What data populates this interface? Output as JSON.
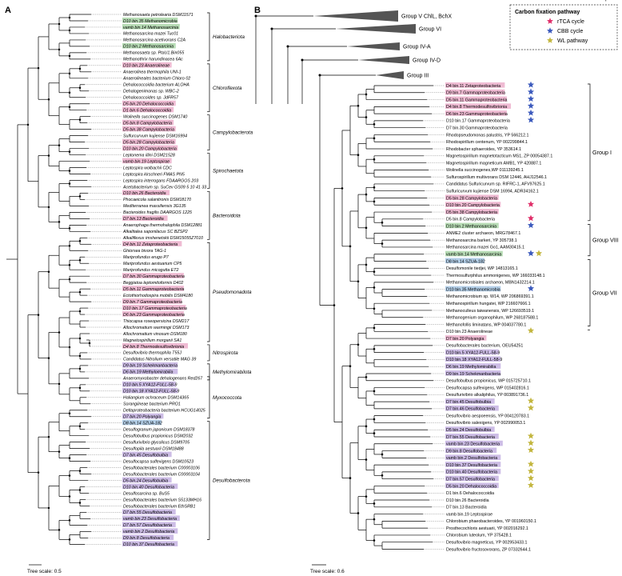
{
  "panels": {
    "a_label": "A",
    "b_label": "B"
  },
  "colors": {
    "green": "#b7dcb5",
    "pink": "#efbbd3",
    "blue": "#b4cfe8",
    "purple": "#cdbde6",
    "star_rtca": "#e0306a",
    "star_cbb": "#3d5bbd",
    "star_wl": "#c3b63f",
    "collapsed": "#555555"
  },
  "legend": {
    "title": "Carbon fixation pathway",
    "items": [
      {
        "label": "rTCA cycle",
        "key": "R"
      },
      {
        "label": "CBB cycle",
        "key": "C"
      },
      {
        "label": "WL pathway",
        "key": "W"
      }
    ]
  },
  "tree_a": {
    "leaves": [
      {
        "label": "Methanosaeta petrolearia DSM11571",
        "hl": ""
      },
      {
        "label": "D10 bin.35 Methanomicrobia",
        "hl": "green"
      },
      {
        "label": "vamb bin.14 Methanosarcinia",
        "hl": "green"
      },
      {
        "label": "Methanosarcina mazei Tuc01",
        "hl": ""
      },
      {
        "label": "Methanosarcina acetivorans C2A",
        "hl": ""
      },
      {
        "label": "D10 bin.2 Methanosarcinia",
        "hl": "green"
      },
      {
        "label": "Methanosaeta sp. PtaU1.Bin055",
        "hl": ""
      },
      {
        "label": "Methanothrix harundinacea 6Ac",
        "hl": ""
      },
      {
        "label": "D10 bin.23 Anaerolineae",
        "hl": "pink"
      },
      {
        "label": "Anaerolinea thermophila UNI-1",
        "hl": ""
      },
      {
        "label": "Anaerolineales bacterium Chloro 02",
        "hl": ""
      },
      {
        "label": "Dehalococcoidia bacterium ALOHA",
        "hl": ""
      },
      {
        "label": "Dehalogenimonas sp. WBC-2",
        "hl": ""
      },
      {
        "label": "Dehalococcoides sp. JdFR57",
        "hl": ""
      },
      {
        "label": "D5 bin.20 Dehalococcoidia",
        "hl": "pink"
      },
      {
        "label": "D1 bin.6 Dehalococcoidia",
        "hl": "pink"
      },
      {
        "label": "Wolinella succinogenes DSM1740",
        "hl": ""
      },
      {
        "label": "D5 bin.8 Campylobacteria",
        "hl": "pink"
      },
      {
        "label": "D5 bin.38 Campylobacteria",
        "hl": "pink"
      },
      {
        "label": "Sulfurcurvum kujiense DSM16994",
        "hl": ""
      },
      {
        "label": "D5 bin.28 Campylobacteria",
        "hl": "pink"
      },
      {
        "label": "D10 bin.20 Campylobacteria",
        "hl": "pink"
      },
      {
        "label": "Leptonema illini DSM21528",
        "hl": ""
      },
      {
        "label": "vamb bin.19 Leptospirae",
        "hl": "pink"
      },
      {
        "label": "Leptospira wolbachii CDC",
        "hl": ""
      },
      {
        "label": "Leptospira kirschneri FMAS PN5",
        "hl": ""
      },
      {
        "label": "Leptospira interrogans FDAARGOS 203",
        "hl": ""
      },
      {
        "label": "Acetobacterium sp. SuCev GS09 5 10 41 33",
        "hl": ""
      },
      {
        "label": "D10 bin.26 Bacteroidia",
        "hl": "pink"
      },
      {
        "label": "Phocaeicola salanitronis DSM18170",
        "hl": ""
      },
      {
        "label": "Mediterranea massiliensis 3G135",
        "hl": ""
      },
      {
        "label": "Bacteroides fragilis DAARGOS 1225",
        "hl": ""
      },
      {
        "label": "D7 bin.13 Bacteroidia",
        "hl": "pink"
      },
      {
        "label": "Anaerophaga thermohalophila DSM12881",
        "hl": ""
      },
      {
        "label": "Alkalitalea saponilacus SC BZSP2",
        "hl": ""
      },
      {
        "label": "Alkaliflexus imshenetskii DSM15055Z7010",
        "hl": ""
      },
      {
        "label": "D4 bin.11 Zetaproteobacteria",
        "hl": "pink"
      },
      {
        "label": "Ghiorsea bivora TAG-1",
        "hl": ""
      },
      {
        "label": "Mariprofundus erugo P7",
        "hl": ""
      },
      {
        "label": "Mariprofundus aestuarium CP5",
        "hl": ""
      },
      {
        "label": "Mariprofundus micogutta ET2",
        "hl": ""
      },
      {
        "label": "D7 bin.30 Gammaproteobacteria",
        "hl": "pink"
      },
      {
        "label": "Beggiatoa leptomitoformis D402",
        "hl": ""
      },
      {
        "label": "D5 bin.11 Gammaproteobacteria",
        "hl": "pink"
      },
      {
        "label": "Ectothiorhodospira mobilis DSM4180",
        "hl": ""
      },
      {
        "label": "D9 bin.7 Gammaproteobacteria",
        "hl": "pink"
      },
      {
        "label": "D10 bin.17 Gammaproteobacteria",
        "hl": "pink"
      },
      {
        "label": "D6 bin.23 Gammaproteobacteria",
        "hl": "pink"
      },
      {
        "label": "Thiocapsa roseopersicina DSM217",
        "hl": ""
      },
      {
        "label": "Allochromatium warmingii DSM173",
        "hl": ""
      },
      {
        "label": "Allochromatium vinosum DSM180",
        "hl": ""
      },
      {
        "label": "Magnetospirillum morganii SA1",
        "hl": ""
      },
      {
        "label": "D4 bin.8 Thermodesulfovibrionia",
        "hl": "pink"
      },
      {
        "label": "Desulfovibrio thermophila T55J",
        "hl": ""
      },
      {
        "label": "Candidatus Nitrolium versatile MAG 39",
        "hl": ""
      },
      {
        "label": "D9 bin.19 Schekmanbacteria",
        "hl": "purple"
      },
      {
        "label": "D6 bin.19 Methylomirabilia",
        "hl": "purple"
      },
      {
        "label": "Anaeromyxobacter dehalogenans Red267",
        "hl": ""
      },
      {
        "label": "D10 bin.5 XYA12-FULL-58-9",
        "hl": "purple"
      },
      {
        "label": "D10 bin.18 XYA12-FULL-58-9",
        "hl": "purple"
      },
      {
        "label": "Haliangium ochraceum DSM14365",
        "hl": ""
      },
      {
        "label": "Sorangiineae bacterium PRO1",
        "hl": ""
      },
      {
        "label": "Deltaproteobacteria bacterium HCUG14025",
        "hl": ""
      },
      {
        "label": "D7 bin.20 Polyangia",
        "hl": "purple"
      },
      {
        "label": "D8 bin.14 SZUA-182",
        "hl": "blue"
      },
      {
        "label": "Desulfogranum japonicum DSM18378",
        "hl": ""
      },
      {
        "label": "Desulfobulbus propionicus DSM2032",
        "hl": ""
      },
      {
        "label": "Desulfurivibrio glycolicus DSM9705",
        "hl": ""
      },
      {
        "label": "Desulfopila aestuarii DSM18488",
        "hl": ""
      },
      {
        "label": "D7 bin.45 Desulfobulbia",
        "hl": "purple"
      },
      {
        "label": "Desulfocapsa sulfexigens DSM10523",
        "hl": ""
      },
      {
        "label": "Desulfobacterales bacterium C00003106",
        "hl": ""
      },
      {
        "label": "Desulfobacterales bacterium C00003104",
        "hl": ""
      },
      {
        "label": "D5 bin.24 Desulfobulbia",
        "hl": "purple"
      },
      {
        "label": "D10 bin.40 Desulfobacteria",
        "hl": "purple"
      },
      {
        "label": "Desulfosarcina sp. BuS5",
        "hl": ""
      },
      {
        "label": "Desulfobacterales bacterium S5133MH16",
        "hl": ""
      },
      {
        "label": "Desulfobacterales bacterium EthSRB1",
        "hl": ""
      },
      {
        "label": "D7 bin.55 Desulfobacteria",
        "hl": "purple"
      },
      {
        "label": "vamb bin.23 Desulfobacteria",
        "hl": "purple"
      },
      {
        "label": "D7 bin.57 Desulfobacteria",
        "hl": "purple"
      },
      {
        "label": "vamb bin.2 Desulfobacteria",
        "hl": "purple"
      },
      {
        "label": "D9 bin.8 Desulfobacteria",
        "hl": "purple"
      },
      {
        "label": "D10 bin.37 Desulfobacteria",
        "hl": "purple"
      }
    ],
    "clades": [
      {
        "label": "Halobacteriota"
      },
      {
        "label": "Chloroflexota"
      },
      {
        "label": "Campylobacterota"
      },
      {
        "label": "Spirochaetota"
      },
      {
        "label": "Bacteroidota"
      },
      {
        "label": "Pseudomonadota"
      },
      {
        "label": "Nitrospirota"
      },
      {
        "label": "Methylomirabilota"
      },
      {
        "label": "Myxococcota"
      },
      {
        "label": "Desulfobacterota"
      }
    ],
    "scale_label": "Tree scale: 0.5"
  },
  "tree_b": {
    "collapsed": [
      {
        "label": "Group V ChlL, BchX"
      },
      {
        "label": "Group VI"
      },
      {
        "label": "Group IV-A"
      },
      {
        "label": "Group IV-D"
      },
      {
        "label": "Group III"
      }
    ],
    "leaves": [
      {
        "label": "D4 bin.11 Zetaproteobacteria",
        "hl": "pink",
        "stars": "C"
      },
      {
        "label": "D9 bin.7 Gammaproteobacteria",
        "hl": "pink",
        "stars": "C"
      },
      {
        "label": "D5 bin.11 Gammaproteobacteria",
        "hl": "pink",
        "stars": "C"
      },
      {
        "label": "D4 bin.8 Thermodesulfovibrionia",
        "hl": "pink",
        "stars": "C"
      },
      {
        "label": "D6 bin.23 Gammaproteobacteria",
        "hl": "pink",
        "stars": "C"
      },
      {
        "label": "D10 bin.17 Gammaproteobacteria",
        "hl": "",
        "stars": "C"
      },
      {
        "label": "D7 bin.30 Gammaproteobacteria",
        "hl": "",
        "stars": ""
      },
      {
        "label": "Rhodopseudomonas palustris, YP 566212.1",
        "hl": "",
        "stars": ""
      },
      {
        "label": "Rhodospirillum centenum, YP 002299844.1",
        "hl": "",
        "stars": ""
      },
      {
        "label": "Rhodobacter sphaeroides, YP 353614.1",
        "hl": "",
        "stars": ""
      },
      {
        "label": "Magnetospirillum magnetotacticum MS1, ZP 00054387.1",
        "hl": "",
        "stars": ""
      },
      {
        "label": "Magnetospirillum magneticum AMB1, YP 420887.1",
        "hl": "",
        "stars": ""
      },
      {
        "label": "Wolinella succinogenes,WP 011139245.1",
        "hl": "",
        "stars": ""
      },
      {
        "label": "Sulfurospirillum multivorans DSM 12446, AHJ12546.1",
        "hl": "",
        "stars": ""
      },
      {
        "label": "Candidatus Sulfuricurvum sp. RIFRC-1, AFV97625.1",
        "hl": "",
        "stars": ""
      },
      {
        "label": "Sulfuricurvum kujiense DSM 16994, ADR34162.1",
        "hl": "",
        "stars": ""
      },
      {
        "label": "D5 bin.28 Campylobacteria",
        "hl": "pink",
        "stars": ""
      },
      {
        "label": "D10 bin.20 Campylobacteria",
        "hl": "pink",
        "stars": "R"
      },
      {
        "label": "D5 bin.38 Campylobacteria",
        "hl": "pink",
        "stars": ""
      },
      {
        "label": "D5 bin.8 Campylobacteria",
        "hl": "",
        "stars": "R"
      },
      {
        "label": "D10 bin.2 Methanosarcinia",
        "hl": "green",
        "stars": "C"
      },
      {
        "label": "ANME2 cluster archaeon, MRG78467.1",
        "hl": "",
        "stars": ""
      },
      {
        "label": "Methanosarcina barkeri, YP 305738.1",
        "hl": "",
        "stars": ""
      },
      {
        "label": "Methanosarcina mazei Go1, AAM30415.1",
        "hl": "",
        "stars": ""
      },
      {
        "label": "vamb bin.14 Methanosarcinia",
        "hl": "green",
        "stars": "CW"
      },
      {
        "label": "D8 bin.14 SZUA-182",
        "hl": "blue",
        "stars": ""
      },
      {
        "label": "Desulfomonile tiedjei, WP 14813165.1",
        "hl": "",
        "stars": ""
      },
      {
        "label": "Thermosulfurphilus ammonigenes, WP 166033148.1",
        "hl": "",
        "stars": ""
      },
      {
        "label": "Methanomicrobiales archaeon, MBN1432214.1",
        "hl": "",
        "stars": ""
      },
      {
        "label": "D10 bin.35 Methanomicrobia",
        "hl": "blue",
        "stars": "C"
      },
      {
        "label": "Methanomicrobium sp. W14, WP 206869391.1",
        "hl": "",
        "stars": ""
      },
      {
        "label": "Methanospirillum hungatei, WP 216607666.1",
        "hl": "",
        "stars": ""
      },
      {
        "label": "Methanoculleus taiwanensis, WP 126693519.1",
        "hl": "",
        "stars": ""
      },
      {
        "label": "Methanogenium organophilum, WP 268187588.1",
        "hl": "",
        "stars": ""
      },
      {
        "label": "Methanofollis liminatans, WP 004037780.1",
        "hl": "",
        "stars": ""
      },
      {
        "label": "D10 bin.23 Anaerolineae",
        "hl": "",
        "stars": "W"
      },
      {
        "label": "D7 bin.20 Polyangia",
        "hl": "pink",
        "stars": ""
      },
      {
        "label": "Desulfobacterales bacterium, OEU54251",
        "hl": "",
        "stars": ""
      },
      {
        "label": "D10 bin.5 XYA12-FULL-58-9",
        "hl": "purple",
        "stars": ""
      },
      {
        "label": "D10 bin.18 XYA12-FULL-58-9",
        "hl": "purple",
        "stars": ""
      },
      {
        "label": "D6 bin.19 Methylomirabilia",
        "hl": "purple",
        "stars": ""
      },
      {
        "label": "D9 bin.19 Schekmanbacteria",
        "hl": "purple",
        "stars": ""
      },
      {
        "label": "Desulfobulbus propionicus, WP 015725710.1",
        "hl": "",
        "stars": ""
      },
      {
        "label": "Desulfocapsa sulfexigens, WP 015402816.1",
        "hl": "",
        "stars": ""
      },
      {
        "label": "Desulfurivibrio alkaliphilus, YP 003891736.1",
        "hl": "",
        "stars": ""
      },
      {
        "label": "D7 bin.45 Desulfobulbia",
        "hl": "purple",
        "stars": "W"
      },
      {
        "label": "D7 bin.46 Desulfobacteria",
        "hl": "purple",
        "stars": "W"
      },
      {
        "label": "Desulfovibrio aespoeensis, YP 004120783.1",
        "hl": "",
        "stars": ""
      },
      {
        "label": "Desulfovibrio salexigens, YP 002990053.1",
        "hl": "",
        "stars": ""
      },
      {
        "label": "D5 bin.24 Desulfobulbia",
        "hl": "purple",
        "stars": ""
      },
      {
        "label": "D7 bin.55 Desulfobacteria",
        "hl": "purple",
        "stars": "W"
      },
      {
        "label": "vamb bin.23 Desulfobacteria",
        "hl": "purple",
        "stars": "W"
      },
      {
        "label": "D9 bin.8 Desulfobacteria",
        "hl": "purple",
        "stars": "W"
      },
      {
        "label": "vamb bin.2 Desulfobacteria",
        "hl": "purple",
        "stars": ""
      },
      {
        "label": "D10 bin.37 Desulfobacteria",
        "hl": "purple",
        "stars": "W"
      },
      {
        "label": "D10 bin.40 Desulfobacteria",
        "hl": "purple",
        "stars": "W"
      },
      {
        "label": "D7 bin.57 Desulfobacteria",
        "hl": "purple",
        "stars": "W"
      },
      {
        "label": "D5 bin.20 Dehalococcoidia",
        "hl": "purple",
        "stars": "W"
      },
      {
        "label": "D1 bin.6 Dehalococcoidia",
        "hl": "",
        "stars": ""
      },
      {
        "label": "D10 bin.26 Bacteroidia",
        "hl": "",
        "stars": ""
      },
      {
        "label": "D7 bin.13 Bacteroidia",
        "hl": "",
        "stars": ""
      },
      {
        "label": "vamb bin.19 Leptospirae",
        "hl": "",
        "stars": ""
      },
      {
        "label": "Chlorobium phaeobacteroides, YP 001960150.1",
        "hl": "",
        "stars": ""
      },
      {
        "label": "Prosthecochloris aestuarii, YP 002016292.1",
        "hl": "",
        "stars": ""
      },
      {
        "label": "Chlorobium luteolum, YP 375428.1",
        "hl": "",
        "stars": ""
      },
      {
        "label": "Desulfovibrio magneticus, YP 002953433.1",
        "hl": "",
        "stars": ""
      },
      {
        "label": "Desulfovibrio fructosovorans, ZP 07332644.1",
        "hl": "",
        "stars": ""
      }
    ],
    "groups": [
      {
        "label": "Group I"
      },
      {
        "label": "Group VIII"
      },
      {
        "label": "Group VII"
      },
      {
        "label": "Group II"
      }
    ],
    "scale_label": "Tree scale: 0.6"
  }
}
